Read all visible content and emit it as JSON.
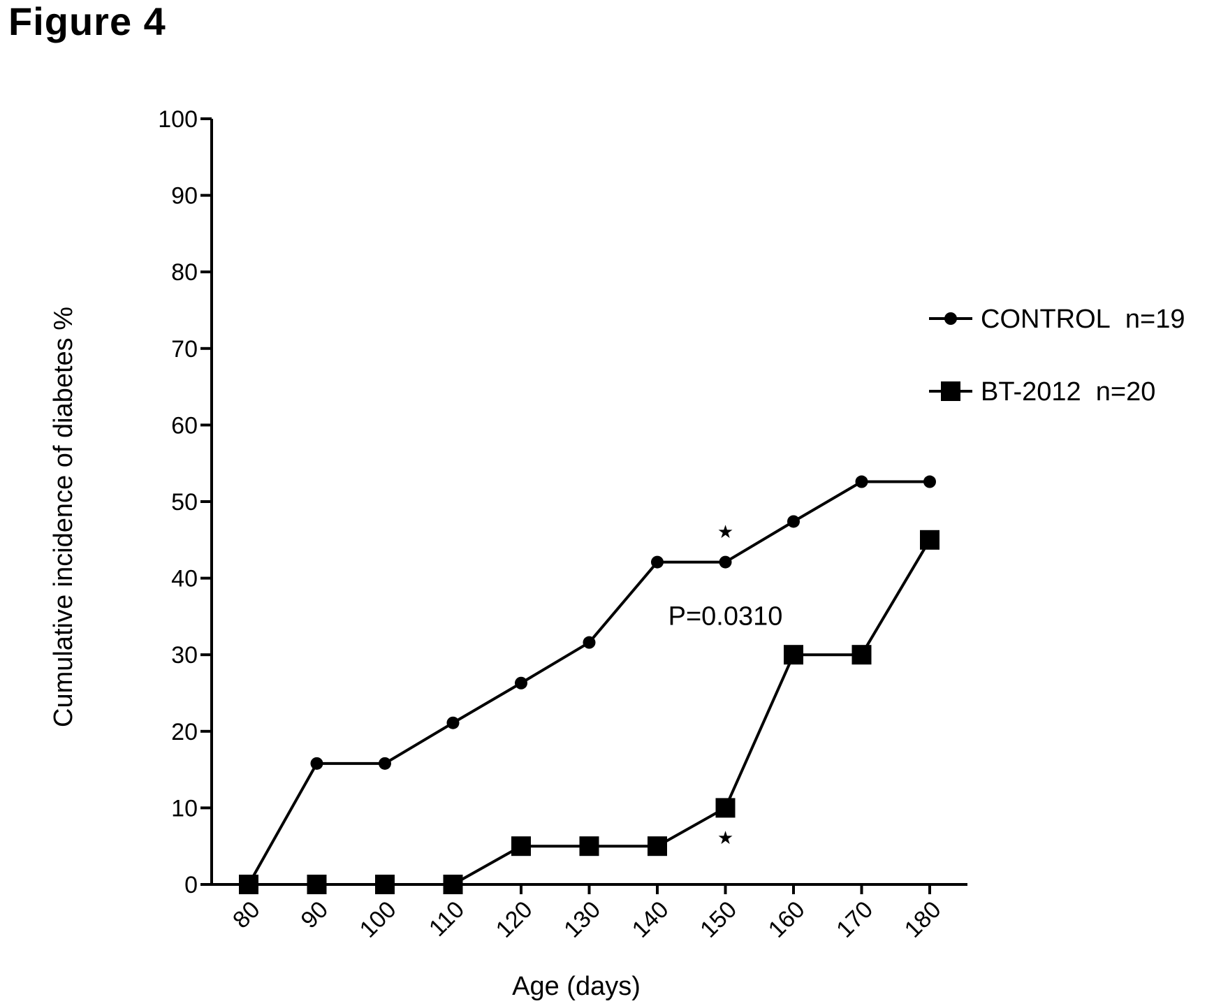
{
  "figure_title": "Figure 4",
  "chart_data": {
    "type": "line",
    "title": "",
    "xlabel": "Age (days)",
    "ylabel": "Cumulative incidence of diabetes %",
    "x": [
      80,
      90,
      100,
      110,
      120,
      130,
      140,
      150,
      160,
      170,
      180
    ],
    "xlim": [
      80,
      180
    ],
    "ylim": [
      0,
      100
    ],
    "yticks": [
      0,
      10,
      20,
      30,
      40,
      50,
      60,
      70,
      80,
      90,
      100
    ],
    "xtick_rotation": -45,
    "grid": false,
    "legend_position": "right",
    "series": [
      {
        "name": "CONTROL  n=19",
        "marker": "circle",
        "color": "#000000",
        "values": [
          0,
          15.8,
          15.8,
          21.1,
          26.3,
          31.6,
          42.1,
          42.1,
          47.4,
          52.6,
          52.6
        ]
      },
      {
        "name": "BT-2012  n=20",
        "marker": "square",
        "color": "#000000",
        "values": [
          0,
          0,
          0,
          0,
          5,
          5,
          5,
          10,
          30,
          30,
          45
        ]
      }
    ],
    "annotations": [
      {
        "text": "P=0.0310",
        "x": 150,
        "y": 35
      },
      {
        "text": "★",
        "x": 150,
        "y": 46
      },
      {
        "text": "★",
        "x": 150,
        "y": 6
      }
    ]
  }
}
